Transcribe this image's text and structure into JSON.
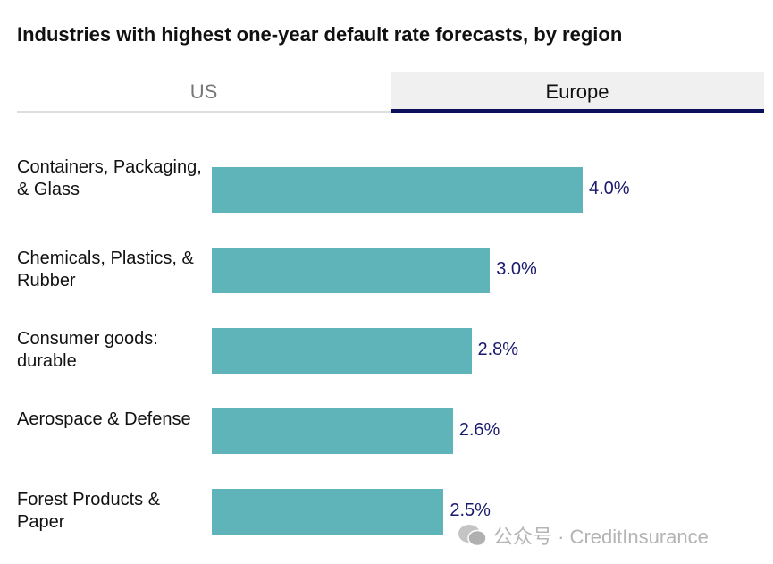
{
  "title": "Industries with highest one-year default rate forecasts, by region",
  "tabs": [
    {
      "label": "US",
      "active": false
    },
    {
      "label": "Europe",
      "active": true
    }
  ],
  "watermark": "公众号 · CreditInsurance",
  "colors": {
    "bar": "#5eb4b9",
    "tab_active": "#0b0f5c"
  },
  "chart_data": {
    "type": "bar",
    "orientation": "horizontal",
    "title": "Industries with highest one-year default rate forecasts, by region",
    "categories": [
      "Containers, Packaging, & Glass",
      "Chemicals, Plastics, & Rubber",
      "Consumer goods: durable",
      "Aerospace & Defense",
      "Forest Products & Paper"
    ],
    "values": [
      4.0,
      3.0,
      2.8,
      2.6,
      2.5
    ],
    "labels": [
      "4.0%",
      "3.0%",
      "2.8%",
      "2.6%",
      "2.5%"
    ],
    "xlim": [
      0,
      4.0
    ],
    "grid": false
  }
}
